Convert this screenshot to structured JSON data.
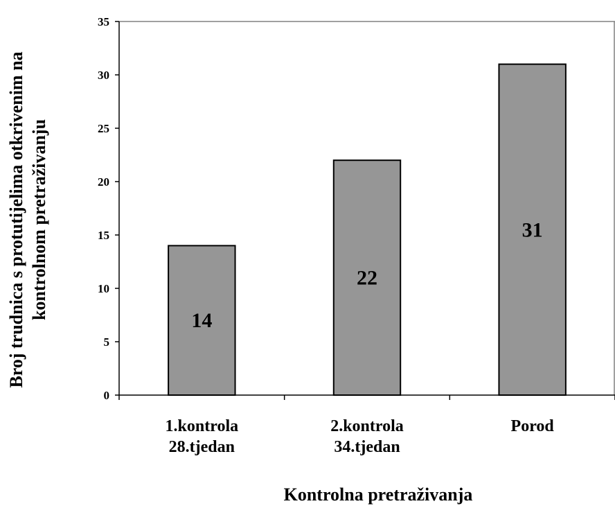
{
  "chart_data": {
    "type": "bar",
    "categories": [
      [
        "1.kontrola",
        "28.tjedan"
      ],
      [
        "2.kontrola",
        "34.tjedan"
      ],
      [
        "Porod"
      ]
    ],
    "values": [
      14,
      22,
      31
    ],
    "data_labels": [
      "14",
      "22",
      "31"
    ],
    "ylim": [
      0,
      35
    ],
    "yticks": [
      0,
      5,
      10,
      15,
      20,
      25,
      30,
      35
    ],
    "ytick_labels": [
      "0",
      "5",
      "10",
      "15",
      "20",
      "25",
      "30",
      "35"
    ],
    "xlabel": "Kontrolna pretraživanja",
    "ylabel": [
      "Broj trudnica s protutijelima otkrivenim na",
      "kontrolnom pretraživanju"
    ],
    "grid": false,
    "bar_color": "#969696",
    "bar_edge_color": "#000000"
  }
}
